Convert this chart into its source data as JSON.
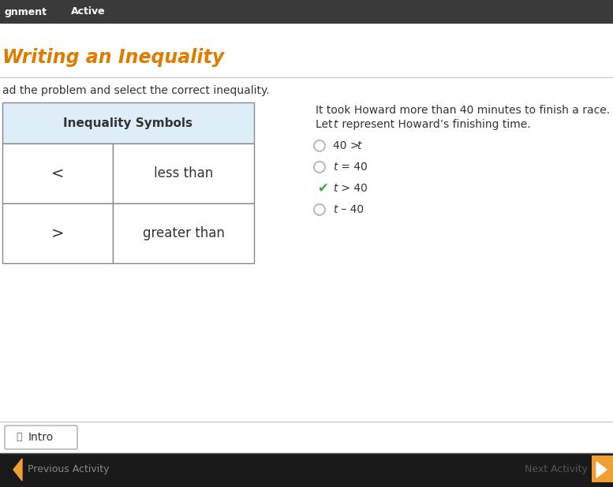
{
  "bg_color": "#ffffff",
  "top_bar_color": "#3a3a3a",
  "title": "Writing an Inequality",
  "title_color": "#e07b00",
  "separator_color": "#cccccc",
  "instruction": "ad the problem and select the correct inequality.",
  "instruction_color": "#333333",
  "table_header": "Inequality Symbols",
  "table_header_bg": "#ddeef8",
  "table_border_color": "#888888",
  "table_rows": [
    {
      "symbol": "<",
      "meaning": "less than"
    },
    {
      "symbol": ">",
      "meaning": "greater than"
    }
  ],
  "problem_line1": "It took Howard more than 40 minutes to finish a race.",
  "problem_line2_pre": "Let ",
  "problem_line2_t": "t",
  "problem_line2_post": " represent Howard’s finishing time.",
  "problem_color": "#333333",
  "options": [
    {
      "label_parts": [
        {
          "text": "40 > ",
          "italic": false
        },
        {
          "text": "t",
          "italic": true
        }
      ],
      "selected": false,
      "correct": false
    },
    {
      "label_parts": [
        {
          "text": "t",
          "italic": true
        },
        {
          "text": " = 40",
          "italic": false
        }
      ],
      "selected": false,
      "correct": false
    },
    {
      "label_parts": [
        {
          "text": "t",
          "italic": true
        },
        {
          "text": " > 40",
          "italic": false
        }
      ],
      "selected": true,
      "correct": true
    },
    {
      "label_parts": [
        {
          "text": "t",
          "italic": true
        },
        {
          "text": " – 40",
          "italic": false
        }
      ],
      "selected": false,
      "correct": false
    }
  ],
  "bottom_bar_color": "#1a1a1a",
  "bottom_bar_text": "Previous Activity",
  "bottom_bar_text_color": "#888888",
  "next_activity_text": "Next Activity",
  "intro_btn_text": "Intro",
  "checkmark_color": "#3aaa35",
  "radio_color": "#bbbbbb",
  "active_color": "#f0a030",
  "fig_width": 7.77,
  "fig_height": 6.18,
  "dpi": 100
}
